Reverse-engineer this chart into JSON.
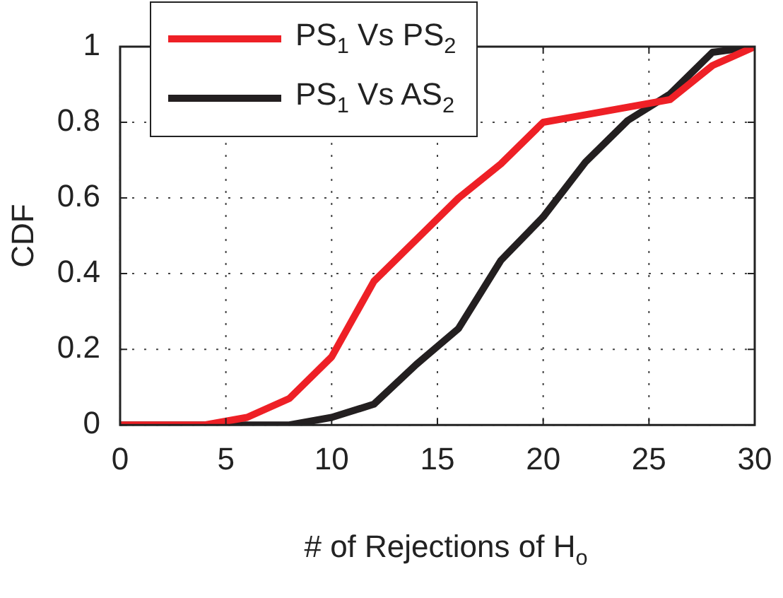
{
  "chart_data": {
    "type": "line",
    "xlabel": "# of Rejections of H$_{o}$",
    "ylabel": "CDF",
    "x": [
      0,
      2,
      4,
      6,
      8,
      10,
      12,
      14,
      16,
      18,
      20,
      22,
      24,
      26,
      28,
      30
    ],
    "series": [
      {
        "name": "PS$_{1}$ Vs PS$_{2}$",
        "color": "#ee2026",
        "values": [
          0,
          0,
          0,
          0.02,
          0.07,
          0.18,
          0.38,
          0.49,
          0.6,
          0.69,
          0.8,
          0.82,
          0.84,
          0.86,
          0.95,
          1
        ]
      },
      {
        "name": "PS$_{1}$ Vs AS$_{2}$",
        "color": "#231f20",
        "values": [
          0,
          0,
          0,
          0,
          0,
          0.02,
          0.055,
          0.16,
          0.255,
          0.435,
          0.55,
          0.695,
          0.805,
          0.875,
          0.985,
          1
        ]
      }
    ],
    "xlim": [
      0,
      30
    ],
    "xticks": [
      0,
      5,
      10,
      15,
      20,
      25,
      30
    ],
    "ylim": [
      0,
      1
    ],
    "yticks": [
      0,
      0.2,
      0.4,
      0.6,
      0.8,
      1
    ],
    "grid": true,
    "legend": "top left",
    "marker": "none",
    "line_style": "solid"
  }
}
